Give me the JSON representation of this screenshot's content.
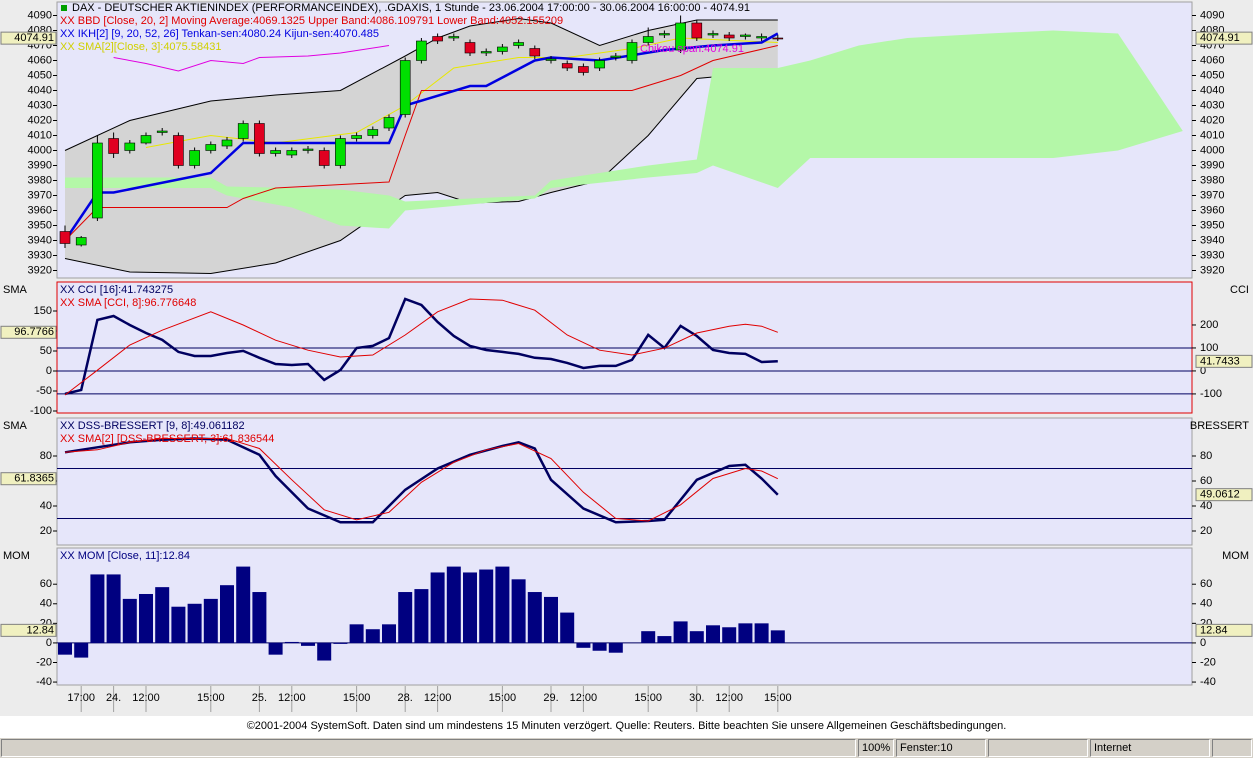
{
  "chart_data": [
    {
      "type": "candlestick",
      "title": "DAX  - DEUTSCHER AKTIENINDEX (PERFORMANCEINDEX), .GDAXIS, 1 Stunde - 23.06.2004 17:00:00 - 30.06.2004 16:00:00 - 4074.91",
      "ylim": [
        3915,
        4099
      ],
      "yticks": [
        3920,
        3930,
        3940,
        3950,
        3960,
        3970,
        3980,
        3990,
        4000,
        4010,
        4020,
        4030,
        4040,
        4050,
        4060,
        4070,
        4080,
        4090
      ],
      "marker_y": 4074.91,
      "color_up": "#00e000",
      "color_down": "#e00020",
      "open": [
        3946,
        3937,
        3955,
        4008,
        4000,
        4005,
        4012,
        4010,
        3990,
        4000,
        4003,
        4008,
        4018,
        3998,
        3997,
        4000,
        4000,
        3990,
        4008,
        4010,
        4015,
        4024,
        4060,
        4076,
        4075,
        4072,
        4065,
        4066,
        4070,
        4068,
        4060,
        4058,
        4056,
        4055,
        4062,
        4060,
        4072,
        4077,
        4067,
        4085,
        4077,
        4077,
        4076,
        4075,
        4075
      ],
      "high": [
        3950,
        3943,
        4010,
        4012,
        4007,
        4012,
        4015,
        4012,
        4002,
        4006,
        4009,
        4020,
        4020,
        4002,
        4002,
        4003,
        4002,
        4010,
        4012,
        4016,
        4024,
        4062,
        4075,
        4078,
        4078,
        4074,
        4068,
        4071,
        4074,
        4070,
        4063,
        4060,
        4058,
        4062,
        4065,
        4074,
        4082,
        4080,
        4090,
        4087,
        4080,
        4079,
        4078,
        4078,
        4077
      ],
      "low": [
        3935,
        3936,
        3953,
        3995,
        3998,
        4004,
        4010,
        3988,
        3988,
        3998,
        4001,
        4006,
        3996,
        3996,
        3995,
        3998,
        3988,
        3988,
        4006,
        4008,
        4013,
        4022,
        4058,
        4071,
        4073,
        4063,
        4063,
        4064,
        4068,
        4061,
        4058,
        4053,
        4050,
        4053,
        4060,
        4058,
        4070,
        4075,
        4065,
        4073,
        4075,
        4073,
        4074,
        4073,
        4073
      ],
      "close": [
        3938,
        3942,
        4005,
        3998,
        4005,
        4010,
        4013,
        3990,
        4000,
        4004,
        4007,
        4018,
        3998,
        4000,
        4000,
        4001,
        3990,
        4008,
        4010,
        4014,
        4022,
        4060,
        4073,
        4073,
        4076,
        4065,
        4066,
        4069,
        4072,
        4063,
        4061,
        4055,
        4052,
        4060,
        4063,
        4072,
        4076,
        4078,
        4085,
        4075,
        4078,
        4075,
        4077,
        4076,
        4074.91
      ],
      "overlays": [
        {
          "type": "band",
          "name": "XX BBD [Close, 20, 2] Moving Average:4069.1325 Upper Band:4086.109791 Lower Band:4052.155209",
          "color": "#000000",
          "label_color": "#e00000",
          "fill": "#d4d4d4",
          "x": [
            0,
            4,
            9,
            13,
            17,
            21,
            23,
            25,
            28,
            30,
            33,
            36,
            39,
            44
          ],
          "upper": [
            4000,
            4020,
            4033,
            4037,
            4040,
            4063,
            4075,
            4083,
            4088,
            4085,
            4070,
            4080,
            4087,
            4087
          ],
          "lower": [
            3928,
            3919,
            3918,
            3925,
            3940,
            3970,
            3972,
            3965,
            3966,
            3972,
            3980,
            4010,
            4048,
            4053
          ]
        },
        {
          "type": "area",
          "name": "XX IKH[2] [9, 20, 52, 26] Tenkan-sen:4080.24 Kijun-sen:4070.485",
          "color": "#b4f7a8",
          "label_color": "#0000e0",
          "x": [
            0,
            9,
            10,
            14,
            17,
            20,
            21,
            29,
            30,
            36,
            39,
            40,
            44,
            46,
            49,
            52,
            57,
            61,
            65,
            69
          ],
          "upper": [
            3982,
            3982,
            3976,
            3975,
            3974,
            3970,
            3966,
            3970,
            3980,
            3990,
            3994,
            4055,
            4055,
            4060,
            4070,
            4075,
            4078,
            4080,
            4078,
            4013
          ],
          "lower": [
            3975,
            3975,
            3970,
            3962,
            3950,
            3948,
            3960,
            3968,
            3975,
            3982,
            3985,
            3990,
            3975,
            3995,
            3995,
            3995,
            3995,
            3995,
            4000,
            4013
          ]
        },
        {
          "type": "line",
          "name": "XX SMA[2][Close, 3]:4075.58431",
          "color": "#e8e800",
          "label_color": "#d0d000",
          "x": [
            5,
            9,
            13,
            18,
            21,
            24,
            28,
            31,
            35,
            38,
            44
          ],
          "values": [
            4002,
            4010,
            4005,
            4012,
            4030,
            4055,
            4062,
            4062,
            4068,
            4075,
            4072
          ]
        },
        {
          "type": "line",
          "color": "#e00000",
          "x": [
            0,
            2,
            10,
            11,
            13,
            20,
            21,
            22,
            33,
            35,
            38,
            40,
            44
          ],
          "values": [
            3940,
            3962,
            3962,
            3968,
            3975,
            3979,
            4010,
            4040,
            4040,
            4040,
            4050,
            4060,
            4070
          ]
        },
        {
          "type": "line",
          "color": "#0000e0",
          "width": 2.5,
          "x": [
            0,
            2,
            3,
            9,
            11,
            13,
            20,
            21,
            25,
            26,
            29,
            30,
            33,
            37,
            40,
            43,
            44
          ],
          "values": [
            3940,
            3972,
            3972,
            3985,
            4005,
            4005,
            4005,
            4030,
            4043,
            4043,
            4060,
            4062,
            4060,
            4067,
            4070,
            4072,
            4078
          ]
        },
        {
          "type": "line",
          "name": "Chikou span:4074.91",
          "color": "#e000e0",
          "label_color": "#e000e0",
          "x": [
            3,
            5,
            7,
            9,
            11,
            12,
            15,
            17,
            20
          ],
          "values": [
            4062,
            4058,
            4053,
            4060,
            4058,
            4062,
            4063,
            4065,
            4070
          ]
        }
      ]
    },
    {
      "type": "line",
      "left_label": "SMA",
      "right_label": "CCI",
      "ylim": [
        -105,
        222.5
      ],
      "yticks": [
        -100,
        -50,
        0,
        50,
        100,
        150
      ],
      "y2lim": [
        -183,
        387
      ],
      "y2ticks": [
        -100,
        0,
        100,
        200
      ],
      "hlines": [
        -100,
        0,
        100
      ],
      "hline_axis": "y2",
      "marker_y": 96.7766,
      "marker_y2": 41.7433,
      "series": [
        {
          "name": "XX CCI [16]:41.743275",
          "color": "#000060",
          "width": 2.5,
          "axis": "y2",
          "values": [
            -100,
            -83,
            222,
            239,
            200,
            165,
            135,
            83,
            65,
            65,
            78,
            87,
            57,
            30,
            26,
            30,
            -39,
            4,
            100,
            109,
            143,
            313,
            287,
            213,
            152,
            109,
            91,
            83,
            74,
            57,
            52,
            35,
            13,
            22,
            22,
            48,
            157,
            100,
            196,
            152,
            91,
            78,
            74,
            39,
            41.743275
          ]
        },
        {
          "name": "XX SMA [CCI, 8]:96.776648",
          "color": "#e00000",
          "x": [
            0,
            2,
            4,
            6,
            9,
            11,
            13,
            15,
            17,
            19,
            21,
            23,
            25,
            27,
            29,
            31,
            33,
            35,
            37,
            39,
            41,
            42,
            43,
            44
          ],
          "values": [
            -60,
            2,
            65,
            102,
            148,
            115,
            77,
            52,
            35,
            40,
            90,
            148,
            180,
            177,
            152,
            90,
            52,
            40,
            57,
            95,
            112,
            117,
            112,
            96.776648
          ]
        }
      ]
    },
    {
      "type": "line",
      "left_label": "SMA",
      "right_label": "BRESSERT",
      "ylim": [
        8.8,
        110.4
      ],
      "yticks": [
        20,
        40,
        60,
        80
      ],
      "hlines": [
        30,
        70
      ],
      "marker_y": 61.8365,
      "marker_y2": 49.0612,
      "series": [
        {
          "name": "XX DSS-BRESSERT [9, 8]:49.061182",
          "color": "#000060",
          "width": 2.5,
          "x": [
            0,
            2,
            4,
            6,
            8,
            10,
            12,
            13,
            15,
            17,
            19,
            21,
            23,
            25,
            27,
            28,
            29,
            30,
            32,
            34,
            36,
            37,
            39,
            41,
            42,
            43,
            44
          ],
          "values": [
            83,
            87,
            91,
            93,
            94,
            93,
            81,
            64,
            38,
            27,
            27,
            53,
            70,
            81,
            88,
            91,
            86,
            61,
            38,
            27,
            28,
            29,
            61,
            72,
            73,
            62,
            49.061182
          ]
        },
        {
          "name": "XX SMA[2] [DSS-BRESSERT, 3]:61.836544",
          "color": "#e00000",
          "x": [
            0,
            2,
            4,
            6,
            10,
            12,
            14,
            16,
            18,
            20,
            22,
            24,
            26,
            28,
            30,
            32,
            34,
            36,
            38,
            40,
            42,
            43,
            44
          ],
          "values": [
            83,
            85,
            91,
            94,
            94,
            86,
            61,
            37,
            29,
            35,
            59,
            75,
            85,
            90,
            78,
            51,
            30,
            28,
            41,
            62,
            70,
            68,
            61.836544
          ]
        }
      ]
    },
    {
      "type": "bar",
      "left_label": "MOM",
      "right_label": "MOM",
      "ylim": [
        -43,
        97
      ],
      "yticks": [
        -40,
        -20,
        0,
        20,
        40,
        60
      ],
      "hlines": [
        0
      ],
      "marker_y": 12.84,
      "series": [
        {
          "name": "XX MOM [Close, 11]:12.84",
          "color": "#000080",
          "values": [
            -12,
            -15,
            70,
            70,
            45,
            50,
            57,
            37,
            40,
            45,
            59,
            78,
            52,
            -12,
            1,
            -3,
            -18,
            -1,
            19,
            14,
            19,
            52,
            55,
            72,
            78,
            72,
            75,
            78,
            65,
            52,
            47,
            31,
            -5,
            -8,
            -10,
            0,
            12,
            7,
            22,
            12,
            18,
            16,
            20,
            20,
            12.84
          ]
        }
      ],
      "xticks": [
        {
          "value": 1,
          "label": "17:00"
        },
        {
          "value": 3,
          "label": "24."
        },
        {
          "value": 5,
          "label": "12:00"
        },
        {
          "value": 9,
          "label": "15:00"
        },
        {
          "value": 12,
          "label": "25."
        },
        {
          "value": 14,
          "label": "12:00"
        },
        {
          "value": 18,
          "label": "15:00"
        },
        {
          "value": 21,
          "label": "28."
        },
        {
          "value": 23,
          "label": "12:00"
        },
        {
          "value": 27,
          "label": "15:00"
        },
        {
          "value": 30,
          "label": "29."
        },
        {
          "value": 32,
          "label": "12:00"
        },
        {
          "value": 36,
          "label": "15:00"
        },
        {
          "value": 39,
          "label": "30."
        },
        {
          "value": 41,
          "label": "12:00"
        },
        {
          "value": 44,
          "label": "15:00"
        }
      ]
    }
  ],
  "footer": "©2001-2004 SystemSoft. Daten sind um mindestens 15 Minuten verzögert. Quelle: Reuters. Bitte beachten Sie unsere Allgemeinen Geschäftsbedingungen.",
  "status_bar": {
    "zoom": "100%",
    "windows": "Fenster:10",
    "zone": "Internet"
  }
}
